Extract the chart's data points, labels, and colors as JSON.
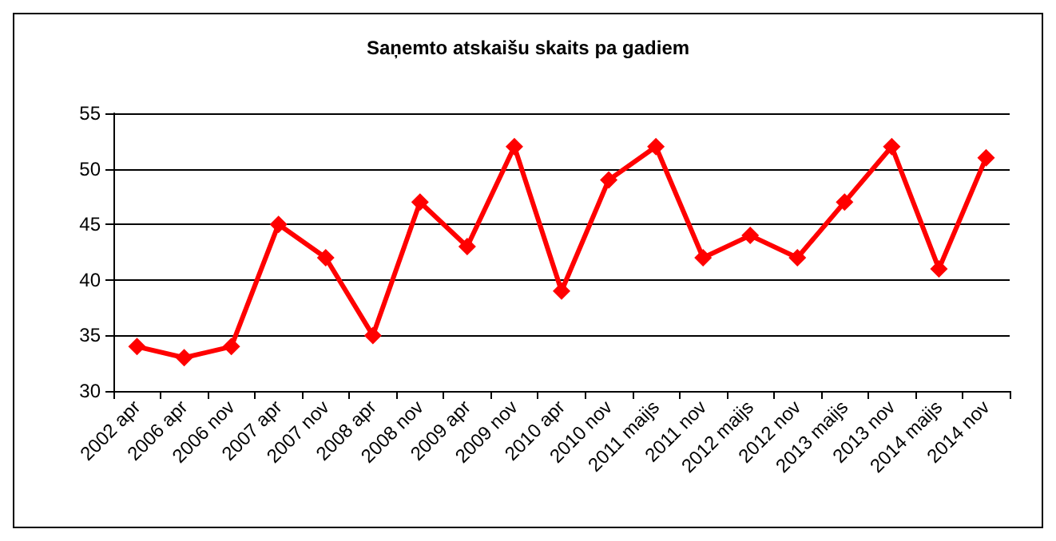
{
  "chart_data": {
    "type": "line",
    "title": "Saņemto atskaišu skaits pa gadiem",
    "categories": [
      "2002 apr",
      "2006 apr",
      "2006 nov",
      "2007 apr",
      "2007 nov",
      "2008 apr",
      "2008 nov",
      "2009 apr",
      "2009 nov",
      "2010 apr",
      "2010 nov",
      "2011 maijs",
      "2011 nov",
      "2012 maijs",
      "2012 nov",
      "2013 maijs",
      "2013 nov",
      "2014 maijs",
      "2014 nov"
    ],
    "series": [
      {
        "color": "#ff0000",
        "values": [
          34,
          33,
          34,
          45,
          42,
          35,
          47,
          43,
          52,
          39,
          49,
          52,
          42,
          44,
          42,
          47,
          52,
          41,
          51
        ]
      }
    ],
    "ylim": [
      30,
      55
    ],
    "yticks": [
      30,
      35,
      40,
      45,
      50,
      55
    ],
    "grid": "y",
    "marker": "diamond",
    "line_style": "solid"
  }
}
